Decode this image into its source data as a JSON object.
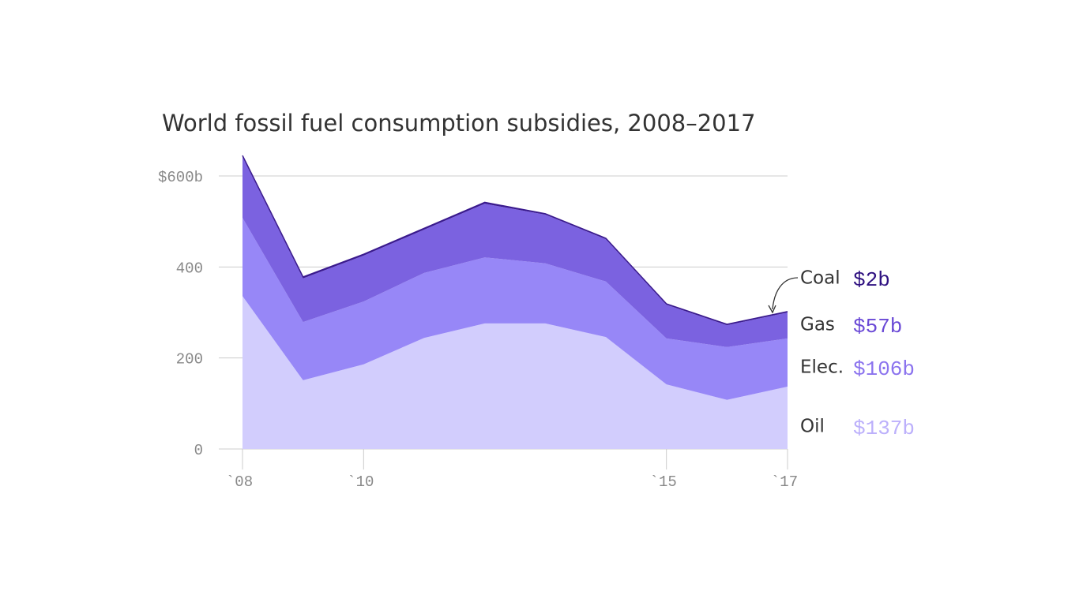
{
  "chart_data": {
    "type": "stacked-area",
    "title": "World fossil fuel consumption subsidies, 2008–2017",
    "x": [
      2008,
      2009,
      2010,
      2011,
      2012,
      2013,
      2014,
      2015,
      2016,
      2017
    ],
    "xlim": [
      2008,
      2017
    ],
    "xticks": [
      {
        "value": 2008,
        "label": "`08"
      },
      {
        "value": 2010,
        "label": "`10"
      },
      {
        "value": 2015,
        "label": "`15"
      },
      {
        "value": 2017,
        "label": "`17"
      }
    ],
    "ylim": [
      0,
      650
    ],
    "yticks": [
      0,
      200,
      400,
      {
        "value": 600,
        "label": "$600b"
      }
    ],
    "grid": true,
    "series": [
      {
        "name": "Oil",
        "color": "#d2cdfd",
        "label_color": "#bcb0fb",
        "values": [
          336,
          151,
          186,
          244,
          276,
          276,
          246,
          142,
          108,
          137
        ],
        "value_labels": [
          null,
          null,
          null,
          null,
          null,
          null,
          null,
          null,
          null,
          "$137b"
        ]
      },
      {
        "name": "Elec.",
        "color": "#9787f7",
        "label_color": "#8b73ee",
        "values": [
          172,
          128,
          138,
          143,
          145,
          132,
          122,
          101,
          116,
          106
        ],
        "value_labels": [
          null,
          null,
          null,
          null,
          null,
          null,
          null,
          null,
          null,
          "$106b"
        ]
      },
      {
        "name": "Gas",
        "color": "#7b62e0",
        "label_color": "#6a49d6",
        "values": [
          134,
          96,
          101,
          95,
          118,
          107,
          93,
          74,
          48,
          57
        ],
        "value_labels": [
          null,
          null,
          null,
          null,
          null,
          null,
          null,
          null,
          null,
          "$57b"
        ]
      },
      {
        "name": "Coal",
        "color": "#3a1a8e",
        "label_color": "#2e1080",
        "values": [
          3,
          3,
          3,
          3,
          3,
          2,
          2,
          2,
          2,
          2
        ],
        "value_labels": [
          null,
          null,
          null,
          null,
          null,
          null,
          null,
          null,
          null,
          "$2b"
        ]
      }
    ]
  }
}
